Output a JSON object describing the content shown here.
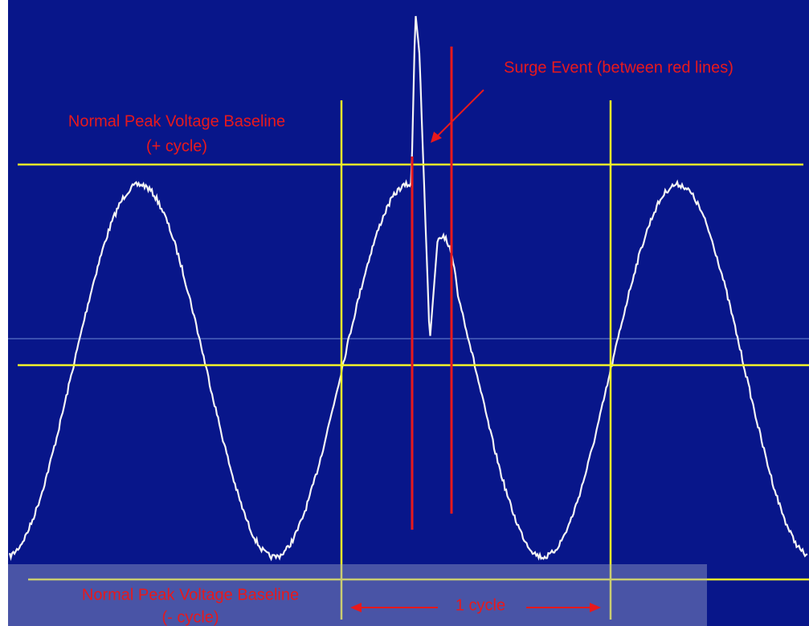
{
  "annotations": {
    "surge": "Surge Event (between red lines)",
    "positive_baseline": {
      "line1": "Normal Peak Voltage Baseline",
      "line2": "(+ cycle)"
    },
    "negative_baseline": {
      "line1": "Normal Peak Voltage Baseline",
      "line2": "(- cycle)"
    },
    "cycle": "1 cycle"
  }
}
